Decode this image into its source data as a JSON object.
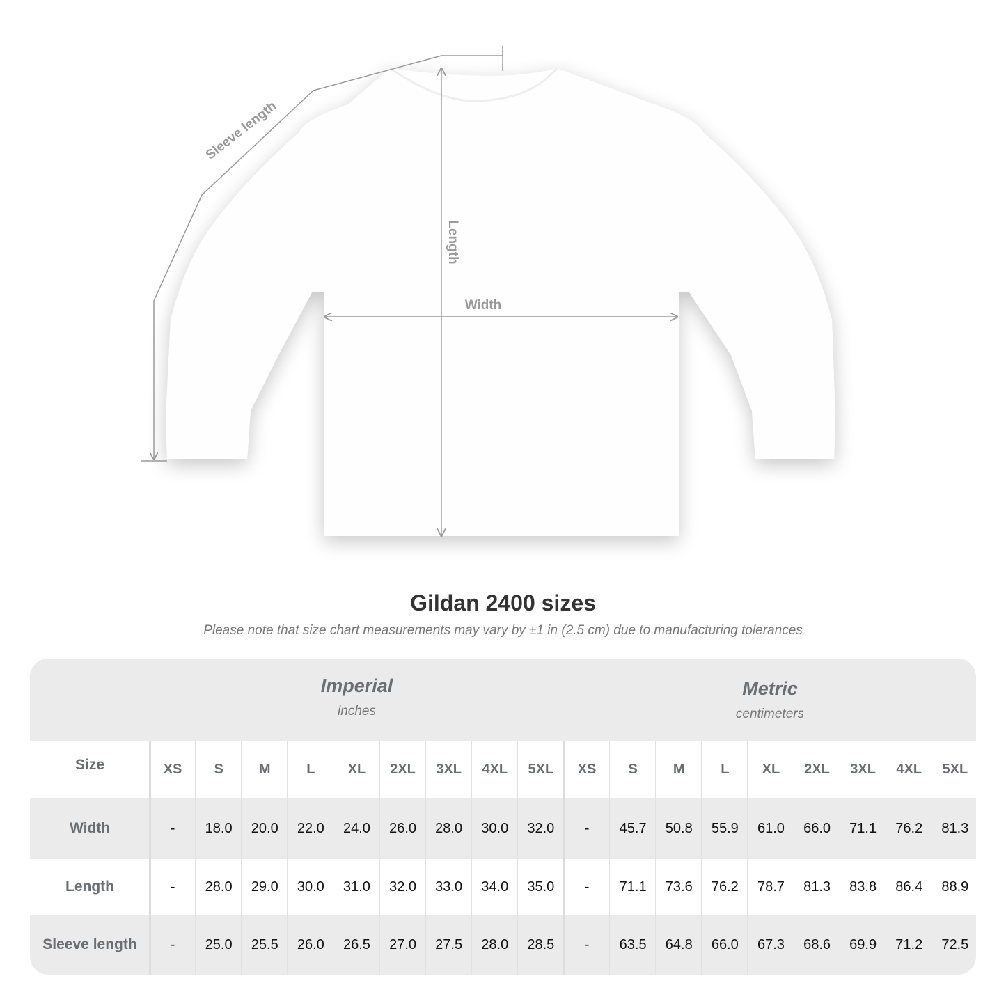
{
  "illustration": {
    "labels": {
      "sleeve_length": "Sleeve length",
      "length": "Length",
      "width": "Width"
    },
    "line_color": "#9a9a9a"
  },
  "title": "Gildan 2400 sizes",
  "subtitle": "Please note that size chart measurements may vary by ±1 in (2.5 cm) due to manufacturing tolerances",
  "table": {
    "imperial": {
      "name": "Imperial",
      "unit": "inches"
    },
    "metric": {
      "name": "Metric",
      "unit": "centimeters"
    },
    "size_label": "Size",
    "sizes": [
      "XS",
      "S",
      "M",
      "L",
      "XL",
      "2XL",
      "3XL",
      "4XL",
      "5XL"
    ],
    "rows": [
      {
        "label": "Width",
        "imperial": [
          "-",
          "18.0",
          "20.0",
          "22.0",
          "24.0",
          "26.0",
          "28.0",
          "30.0",
          "32.0"
        ],
        "metric": [
          "-",
          "45.7",
          "50.8",
          "55.9",
          "61.0",
          "66.0",
          "71.1",
          "76.2",
          "81.3"
        ]
      },
      {
        "label": "Length",
        "imperial": [
          "-",
          "28.0",
          "29.0",
          "30.0",
          "31.0",
          "32.0",
          "33.0",
          "34.0",
          "35.0"
        ],
        "metric": [
          "-",
          "71.1",
          "73.6",
          "76.2",
          "78.7",
          "81.3",
          "83.8",
          "86.4",
          "88.9"
        ]
      },
      {
        "label": "Sleeve length",
        "imperial": [
          "-",
          "25.0",
          "25.5",
          "26.0",
          "26.5",
          "27.0",
          "27.5",
          "28.0",
          "28.5"
        ],
        "metric": [
          "-",
          "63.5",
          "64.8",
          "66.0",
          "67.3",
          "68.6",
          "69.9",
          "71.2",
          "72.5"
        ]
      }
    ],
    "colors": {
      "band": "#ebebeb",
      "header_text": "#6b6e70",
      "value_text": "#111111"
    }
  }
}
